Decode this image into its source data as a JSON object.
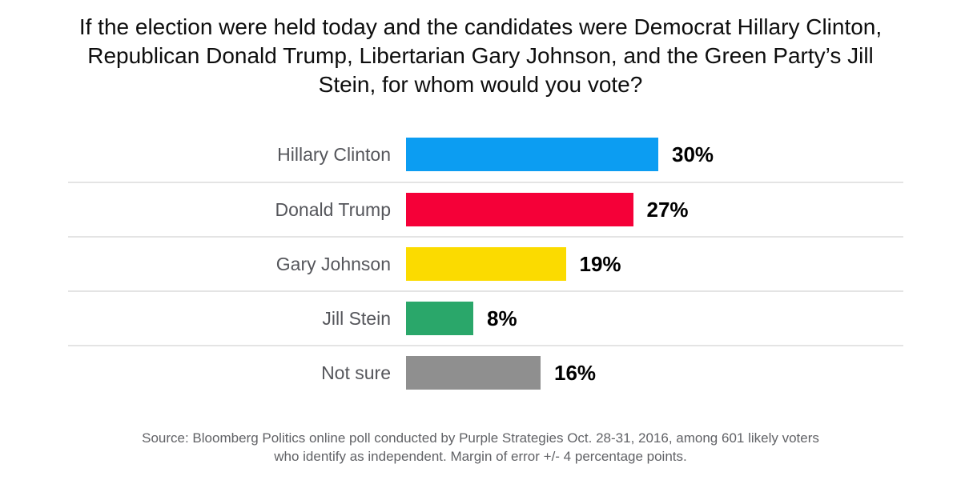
{
  "title": "If the election were held today and the candidates were Democrat Hillary Clinton, Republican Donald Trump, Libertarian Gary Johnson, and the Green Party’s Jill Stein, for whom would you vote?",
  "source": {
    "line1": "Source: Bloomberg Politics online poll conducted by Purple Strategies Oct. 28-31, 2016, among 601 likely voters",
    "line2": "who identify as independent. Margin of error +/- 4 percentage points."
  },
  "chart_data": {
    "type": "bar",
    "orientation": "horizontal",
    "title": "If the election were held today and the candidates were Democrat Hillary Clinton, Republican Donald Trump, Libertarian Gary Johnson, and the Green Party’s Jill Stein, for whom would you vote?",
    "categories": [
      "Hillary Clinton",
      "Donald Trump",
      "Gary Johnson",
      "Jill Stein",
      "Not sure"
    ],
    "values": [
      30,
      27,
      19,
      8,
      16
    ],
    "value_labels": [
      "30%",
      "27%",
      "19%",
      "8%",
      "16%"
    ],
    "bar_colors": [
      "#0c9df2",
      "#f50038",
      "#fbdb00",
      "#2aa76a",
      "#8f8f8f"
    ],
    "xlim": [
      0,
      30
    ],
    "unit": "percent",
    "grid": false,
    "legend": false,
    "divider_color": "#e4e4e4",
    "label_color": "#55565b",
    "value_label_color": "#000000",
    "source": "Source: Bloomberg Politics online poll conducted by Purple Strategies Oct. 28-31, 2016, among 601 likely voters who identify as independent. Margin of error +/- 4 percentage points."
  }
}
